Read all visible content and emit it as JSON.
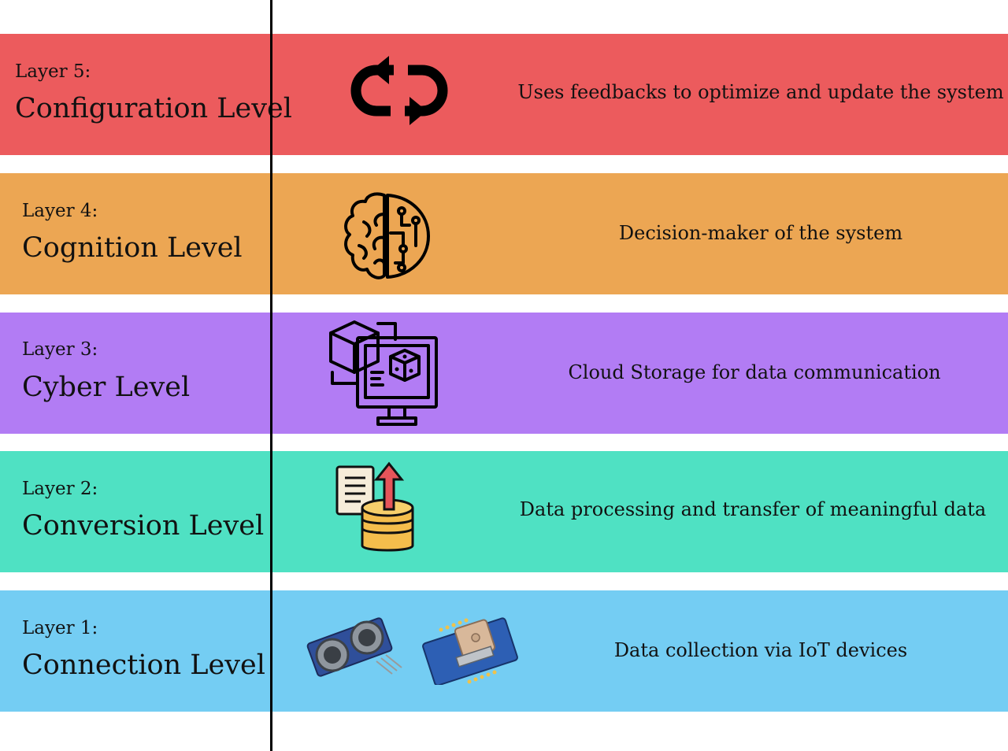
{
  "colors": {
    "layer5": "#ec5b5d",
    "layer4": "#eca653",
    "layer3": "#b27cf4",
    "layer2": "#4fe1c3",
    "layer1": "#74cdf3",
    "divider": "#000000"
  },
  "layers": [
    {
      "number_label": "Layer 5:",
      "name": "Configuration Level",
      "description": "Uses feedbacks to optimize and update the system",
      "icon": "refresh-cycle-icon"
    },
    {
      "number_label": "Layer 4:",
      "name": "Cognition Level",
      "description": "Decision-maker of the system",
      "icon": "brain-circuit-icon"
    },
    {
      "number_label": "Layer 3:",
      "name": "Cyber Level",
      "description": "Cloud Storage for data communication",
      "icon": "monitor-cube-icon"
    },
    {
      "number_label": "Layer 2:",
      "name": "Conversion Level",
      "description": "Data processing and transfer of meaningful data",
      "icon": "document-database-upload-icon"
    },
    {
      "number_label": "Layer 1:",
      "name": "Connection Level",
      "description": "Data collection via IoT devices",
      "icon": "iot-sensor-modules-icon"
    }
  ]
}
